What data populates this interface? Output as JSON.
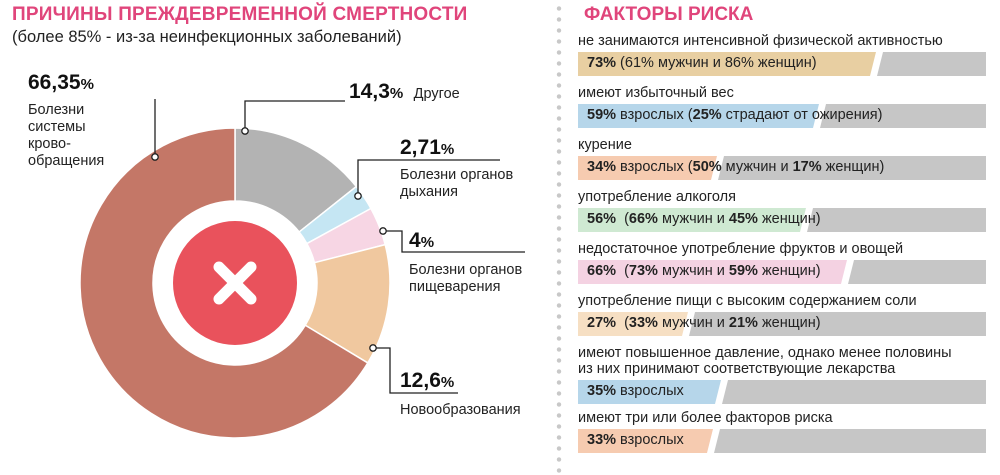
{
  "left": {
    "title": "ПРИЧИНЫ ПРЕЖДЕВРЕМЕННОЙ СМЕРТНОСТИ",
    "subtitle": "(более 85% - из-за неинфекционных заболеваний)"
  },
  "chart_data": {
    "type": "pie",
    "donut": true,
    "center_icon": "close-icon",
    "slices": [
      {
        "value": 14.3,
        "value_label": "14,3",
        "name": "Другое",
        "color": "#b3b3b3"
      },
      {
        "value": 2.71,
        "value_label": "2,71",
        "name": "Болезни органов дыхания",
        "color": "#c5e6f3"
      },
      {
        "value": 4,
        "value_label": "4",
        "name": "Болезни органов пищеварения",
        "color": "#f7d6e4"
      },
      {
        "value": 12.6,
        "value_label": "12,6",
        "name": "Новообразования",
        "color": "#f0c89f"
      },
      {
        "value": 66.35,
        "value_label": "66,35",
        "name": "Болезни системы крово- обращения",
        "color": "#c47767"
      }
    ],
    "labels": {
      "s0_num": "14,3",
      "s0_desc": "Другое",
      "s1_num": "2,71",
      "s1_l1": "Болезни органов",
      "s1_l2": "дыхания",
      "s2_num": "4",
      "s2_l1": "Болезни органов",
      "s2_l2": "пищеварения",
      "s3_num": "12,6",
      "s3_desc": "Новообразования",
      "s4_num": "66,35",
      "s4_l1": "Болезни",
      "s4_l2": "системы",
      "s4_l3": "крово-",
      "s4_l4": "обращения",
      "pct_sign": "%"
    }
  },
  "right": {
    "title": "ФАКТОРЫ РИСКА",
    "items": [
      {
        "label": "не занимаются интенсивной физической активностью",
        "fill": 0.73,
        "color": "#e8cfa2",
        "text": [
          {
            "t": "73%",
            "b": true
          },
          {
            "t": " (61% мужчин и 86% женщин)",
            "b": false
          }
        ]
      },
      {
        "label": "имеют избыточный вес",
        "fill": 0.59,
        "color": "#b6d6ea",
        "text": [
          {
            "t": "59%",
            "b": true
          },
          {
            "t": " взрослых (",
            "b": false
          },
          {
            "t": "25%",
            "b": true
          },
          {
            "t": " страдают от ожирения)",
            "b": false
          }
        ]
      },
      {
        "label": "курение",
        "fill": 0.34,
        "color": "#f6cbb0",
        "text": [
          {
            "t": "34%",
            "b": true
          },
          {
            "t": " взрослых (",
            "b": false
          },
          {
            "t": "50%",
            "b": true
          },
          {
            "t": " мужчин и ",
            "b": false
          },
          {
            "t": "17%",
            "b": true
          },
          {
            "t": " женщин)",
            "b": false
          }
        ]
      },
      {
        "label": "употребление алкоголя",
        "fill": 0.56,
        "color": "#cfe9d2",
        "text": [
          {
            "t": "56%",
            "b": true
          },
          {
            "t": "  (",
            "b": false
          },
          {
            "t": "66%",
            "b": true
          },
          {
            "t": " мужчин и ",
            "b": false
          },
          {
            "t": "45%",
            "b": true
          },
          {
            "t": " женщин)",
            "b": false
          }
        ]
      },
      {
        "label": "недостаточное употребление фруктов и овощей",
        "fill": 0.66,
        "color": "#f4d2e2",
        "text": [
          {
            "t": "66%",
            "b": true
          },
          {
            "t": "  (",
            "b": false
          },
          {
            "t": "73%",
            "b": true
          },
          {
            "t": " мужчин и ",
            "b": false
          },
          {
            "t": "59%",
            "b": true
          },
          {
            "t": " женщин)",
            "b": false
          }
        ]
      },
      {
        "label": "употребление пищи с высоким содержанием соли",
        "fill": 0.27,
        "color": "#f6dfc3",
        "text": [
          {
            "t": "27%",
            "b": true
          },
          {
            "t": "  (",
            "b": false
          },
          {
            "t": "33%",
            "b": true
          },
          {
            "t": " мужчин и ",
            "b": false
          },
          {
            "t": "21%",
            "b": true
          },
          {
            "t": " женщин)",
            "b": false
          }
        ]
      },
      {
        "label": "имеют повышенное давление, однако менее половины",
        "label2": "из них принимают соответствующие лекарства",
        "fill": 0.35,
        "color": "#b6d6ea",
        "text": [
          {
            "t": "35%",
            "b": true
          },
          {
            "t": " взрослых",
            "b": false
          }
        ]
      },
      {
        "label": "имеют три или более факторов риска",
        "fill": 0.33,
        "color": "#f6cbb0",
        "text": [
          {
            "t": "33%",
            "b": true
          },
          {
            "t": " взрослых",
            "b": false
          }
        ]
      }
    ]
  }
}
